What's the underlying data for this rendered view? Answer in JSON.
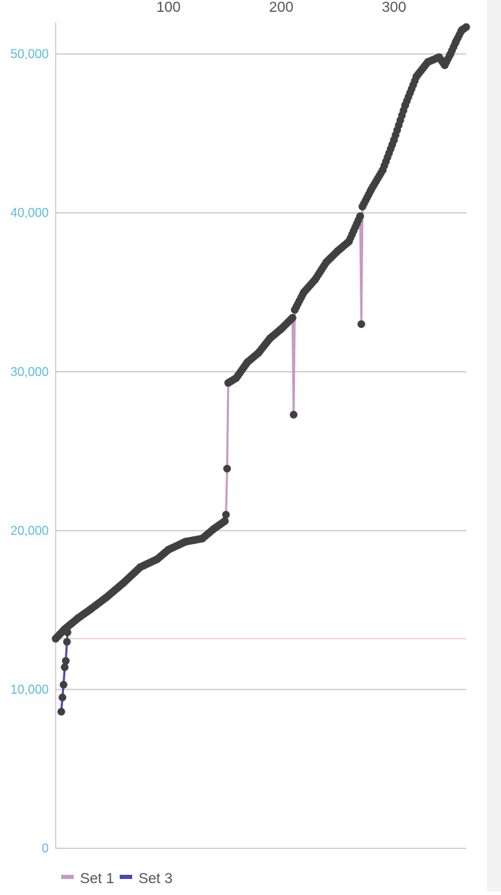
{
  "chart_data": {
    "type": "line",
    "title": "",
    "xlabel": "",
    "ylabel": "",
    "x_axis_position": "top",
    "xlim": [
      0,
      364
    ],
    "ylim": [
      0,
      52000
    ],
    "x_ticks": [
      100,
      200,
      300
    ],
    "x_tick_labels": [
      "100",
      "200",
      "300"
    ],
    "y_ticks": [
      0,
      10000,
      20000,
      30000,
      40000,
      50000
    ],
    "y_tick_labels": [
      "0",
      "10,000",
      "20,000",
      "30,000",
      "40,000",
      "50,000"
    ],
    "grid": "horizontal",
    "reference_line": {
      "y": 13200,
      "color": "#f0c8c8"
    },
    "legend": {
      "position": "bottom-left"
    },
    "series": [
      {
        "name": "Set 1",
        "color": "#c79ac3",
        "points": [
          [
            0,
            13200
          ],
          [
            8,
            13800
          ],
          [
            20,
            14500
          ],
          [
            30,
            15000
          ],
          [
            45,
            15800
          ],
          [
            60,
            16700
          ],
          [
            75,
            17700
          ],
          [
            90,
            18200
          ],
          [
            100,
            18800
          ],
          [
            115,
            19300
          ],
          [
            130,
            19500
          ],
          [
            140,
            20100
          ],
          [
            150,
            20600
          ],
          [
            151,
            21000
          ],
          [
            152,
            23900
          ],
          [
            153,
            29300
          ],
          [
            160,
            29600
          ],
          [
            170,
            30600
          ],
          [
            180,
            31200
          ],
          [
            190,
            32100
          ],
          [
            200,
            32700
          ],
          [
            210,
            33400
          ],
          [
            211,
            27300
          ],
          [
            212,
            33900
          ],
          [
            220,
            35000
          ],
          [
            230,
            35800
          ],
          [
            240,
            36900
          ],
          [
            250,
            37600
          ],
          [
            260,
            38200
          ],
          [
            270,
            39800
          ],
          [
            271,
            33000
          ],
          [
            272,
            40400
          ],
          [
            280,
            41500
          ],
          [
            290,
            42700
          ],
          [
            300,
            44600
          ],
          [
            310,
            46800
          ],
          [
            320,
            48600
          ],
          [
            330,
            49500
          ],
          [
            340,
            49800
          ],
          [
            345,
            49300
          ],
          [
            350,
            50000
          ],
          [
            355,
            50800
          ],
          [
            360,
            51500
          ],
          [
            364,
            51700
          ]
        ]
      },
      {
        "name": "Set 3",
        "color": "#4848c0",
        "points": [
          [
            5,
            8600
          ],
          [
            6,
            9500
          ],
          [
            7,
            10300
          ],
          [
            8,
            11400
          ],
          [
            9,
            11800
          ],
          [
            10,
            13000
          ],
          [
            10.5,
            13600
          ]
        ]
      }
    ],
    "marker_color": "#404040"
  }
}
